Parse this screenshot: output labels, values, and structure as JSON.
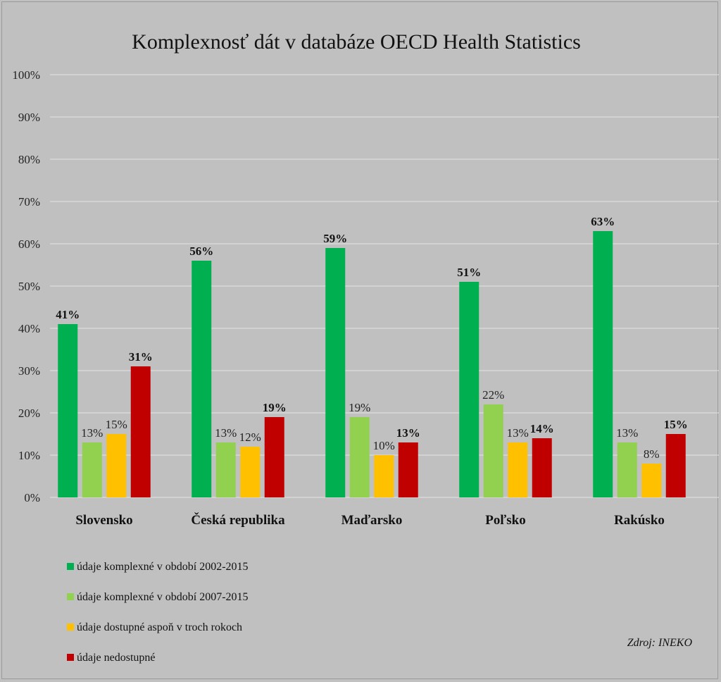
{
  "chart_data": {
    "type": "bar",
    "title": "Komplexnosť dát v databáze OECD Health Statistics",
    "xlabel": "",
    "ylabel": "",
    "ylim": [
      0,
      100
    ],
    "y_ticks": [
      "0%",
      "10%",
      "20%",
      "30%",
      "40%",
      "50%",
      "60%",
      "70%",
      "80%",
      "90%",
      "100%"
    ],
    "grid": true,
    "legend_position": "bottom-left",
    "categories": [
      "Slovensko",
      "Česká republika",
      "Maďarsko",
      "Poľsko",
      "Rakúsko"
    ],
    "series": [
      {
        "name": "údaje komplexné v období 2002-2015",
        "color": "#00b050",
        "values": [
          41,
          56,
          59,
          51,
          63
        ],
        "labels": [
          "41%",
          "56%",
          "59%",
          "51%",
          "63%"
        ],
        "label_bold": true
      },
      {
        "name": "údaje komplexné v období 2007-2015",
        "color": "#92d050",
        "values": [
          13,
          13,
          19,
          22,
          13
        ],
        "labels": [
          "13%",
          "13%",
          "19%",
          "22%",
          "13%"
        ],
        "label_bold": false
      },
      {
        "name": "údaje dostupné aspoň v troch rokoch",
        "color": "#ffc000",
        "values": [
          15,
          12,
          10,
          13,
          8
        ],
        "labels": [
          "15%",
          "12%",
          "10%",
          "13%",
          "8%"
        ],
        "label_bold": false
      },
      {
        "name": "údaje nedostupné",
        "color": "#c00000",
        "values": [
          31,
          19,
          13,
          14,
          15
        ],
        "labels": [
          "31%",
          "19%",
          "13%",
          "14%",
          "15%"
        ],
        "label_bold": true
      }
    ],
    "source": "Zdroj: INEKO"
  }
}
